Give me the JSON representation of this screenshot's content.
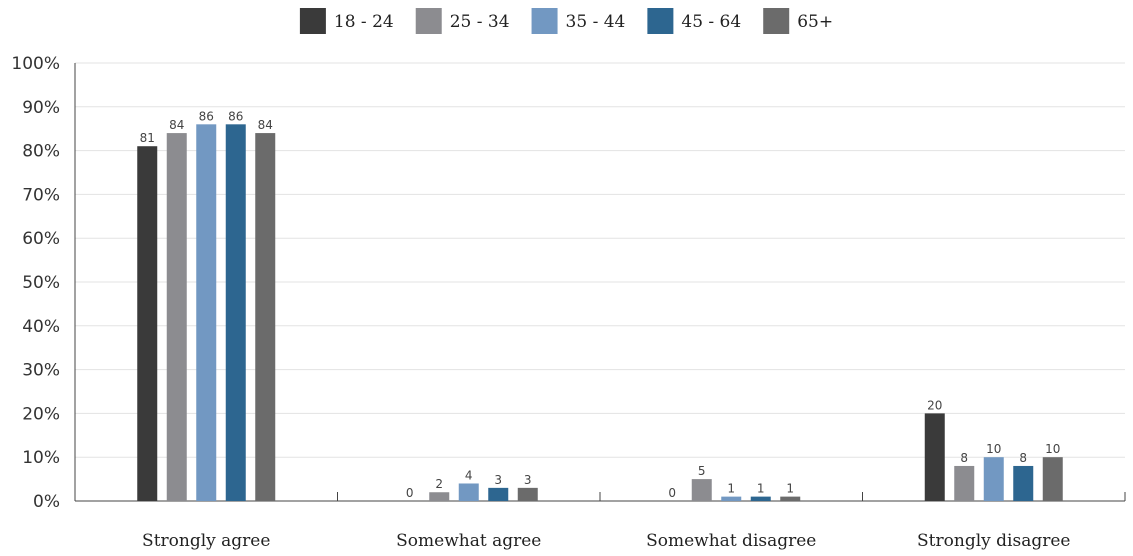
{
  "colors": {
    "18_24": "#3a3a3a",
    "25_34": "#8c8c90",
    "35_44": "#7298c2",
    "45_64": "#2d6690",
    "65_plus": "#6b6b6b",
    "grid": "#e3e3e3",
    "axis": "#444444"
  },
  "chart_data": {
    "type": "bar",
    "title": "",
    "xlabel": "",
    "ylabel": "",
    "ylim": [
      0,
      100
    ],
    "y_ticks": [
      "0%",
      "10%",
      "20%",
      "30%",
      "40%",
      "50%",
      "60%",
      "70%",
      "80%",
      "90%",
      "100%"
    ],
    "y_tick_values": [
      0,
      10,
      20,
      30,
      40,
      50,
      60,
      70,
      80,
      90,
      100
    ],
    "grid": true,
    "legend_position": "top-center",
    "categories": [
      "Strongly agree",
      "Somewhat agree",
      "Somewhat disagree",
      "Strongly disagree"
    ],
    "series": [
      {
        "name": "18 - 24",
        "color": "#3a3a3a",
        "values": [
          81,
          0,
          0,
          20
        ]
      },
      {
        "name": "25 - 34",
        "color": "#8c8c90",
        "values": [
          84,
          2,
          5,
          8
        ]
      },
      {
        "name": "35 - 44",
        "color": "#7298c2",
        "values": [
          86,
          4,
          1,
          10
        ]
      },
      {
        "name": "45 - 64",
        "color": "#2d6690",
        "values": [
          86,
          3,
          1,
          8
        ]
      },
      {
        "name": "65+",
        "color": "#6b6b6b",
        "values": [
          84,
          3,
          1,
          10
        ]
      }
    ]
  }
}
